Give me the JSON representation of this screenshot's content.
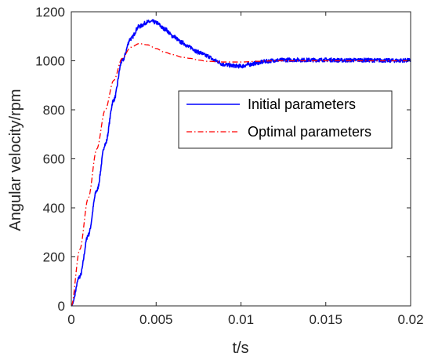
{
  "chart_data": {
    "type": "line",
    "xlabel": "t/s",
    "ylabel": "Angular velocity/rpm",
    "xlim": [
      0,
      0.02
    ],
    "ylim": [
      0,
      1200
    ],
    "xticks": [
      "0",
      "0.005",
      "0.01",
      "0.015",
      "0.02"
    ],
    "yticks": [
      "0",
      "200",
      "400",
      "600",
      "800",
      "1000",
      "1200"
    ],
    "grid": false,
    "legend_position": "right",
    "series": [
      {
        "name": "Initial parameters",
        "color": "#0000ff",
        "line_style": "solid",
        "noisy": true,
        "x": [
          0,
          0.0005,
          0.001,
          0.0015,
          0.002,
          0.0025,
          0.003,
          0.0035,
          0.004,
          0.0045,
          0.0048,
          0.005,
          0.0055,
          0.006,
          0.0065,
          0.007,
          0.0075,
          0.008,
          0.0085,
          0.009,
          0.0095,
          0.01,
          0.0105,
          0.011,
          0.0115,
          0.012,
          0.013,
          0.014,
          0.015,
          0.016,
          0.017,
          0.018,
          0.019,
          0.02
        ],
        "y": [
          0,
          120,
          290,
          470,
          660,
          840,
          1000,
          1090,
          1140,
          1158,
          1160,
          1155,
          1130,
          1100,
          1075,
          1055,
          1035,
          1020,
          1000,
          985,
          980,
          978,
          985,
          992,
          998,
          1002,
          1004,
          1003,
          1004,
          1002,
          1003,
          1002,
          1001,
          1002
        ]
      },
      {
        "name": "Optimal parameters",
        "color": "#ff0000",
        "line_style": "dashdot",
        "noisy": false,
        "x": [
          0,
          0.0005,
          0.001,
          0.0015,
          0.002,
          0.0025,
          0.003,
          0.0035,
          0.004,
          0.0045,
          0.005,
          0.0055,
          0.006,
          0.0065,
          0.007,
          0.0075,
          0.008,
          0.009,
          0.01,
          0.011,
          0.012,
          0.013,
          0.014,
          0.015,
          0.016,
          0.017,
          0.018,
          0.019,
          0.02
        ],
        "y": [
          0,
          230,
          440,
          640,
          800,
          920,
          1010,
          1055,
          1070,
          1065,
          1050,
          1035,
          1025,
          1015,
          1010,
          1003,
          998,
          995,
          995,
          998,
          1000,
          1000,
          1000,
          1000,
          1000,
          1000,
          1000,
          1000,
          1000
        ]
      }
    ]
  }
}
